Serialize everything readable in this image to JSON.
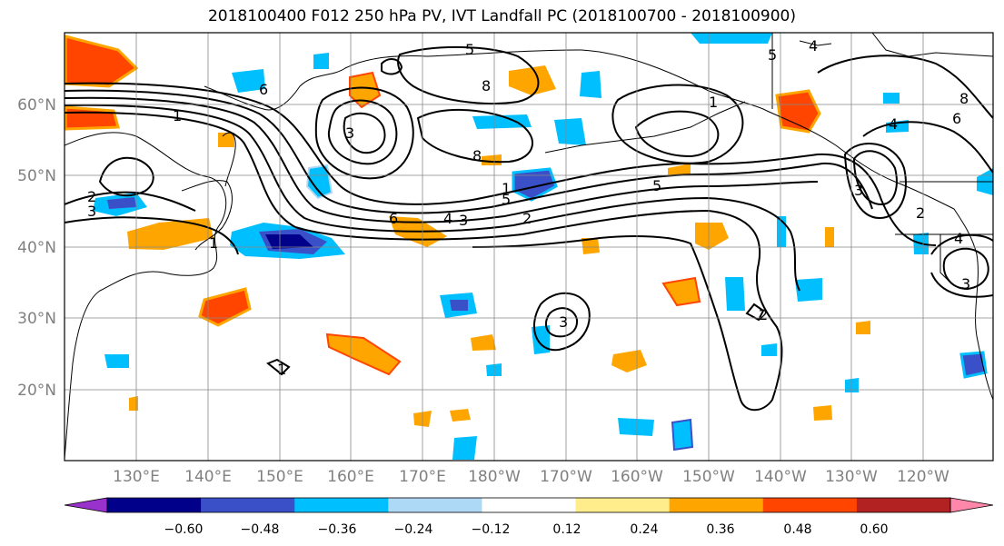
{
  "title": "2018100400 F012 250 hPa PV, IVT Landfall PC (2018100700 - 2018100900)",
  "map": {
    "lat_ticks": [
      "60°N",
      "50°N",
      "40°N",
      "30°N",
      "20°N"
    ],
    "lon_ticks": [
      "130°E",
      "140°E",
      "150°E",
      "160°E",
      "170°E",
      "180°W",
      "170°W",
      "160°W",
      "150°W",
      "140°W",
      "130°W",
      "120°W"
    ],
    "contour_labels": [
      "1",
      "2",
      "3",
      "5",
      "6",
      "8",
      "1",
      "2",
      "3",
      "4",
      "5",
      "6",
      "8",
      "1",
      "3",
      "5",
      "2",
      "4",
      "3",
      "2",
      "5",
      "4",
      "6",
      "8",
      "4",
      "3",
      "3",
      "1",
      "1"
    ]
  },
  "colorbar": {
    "labels": [
      "−0.60",
      "−0.48",
      "−0.36",
      "−0.24",
      "−0.12",
      "0.12",
      "0.24",
      "0.36",
      "0.48",
      "0.60"
    ],
    "colors": [
      "#9932CC",
      "#00008B",
      "#3A50C8",
      "#00BFFF",
      "#ADD8F6",
      "#FFFFFF",
      "#FFEC8B",
      "#FFA500",
      "#FF4500",
      "#B22222",
      "#FF88AA"
    ]
  }
}
